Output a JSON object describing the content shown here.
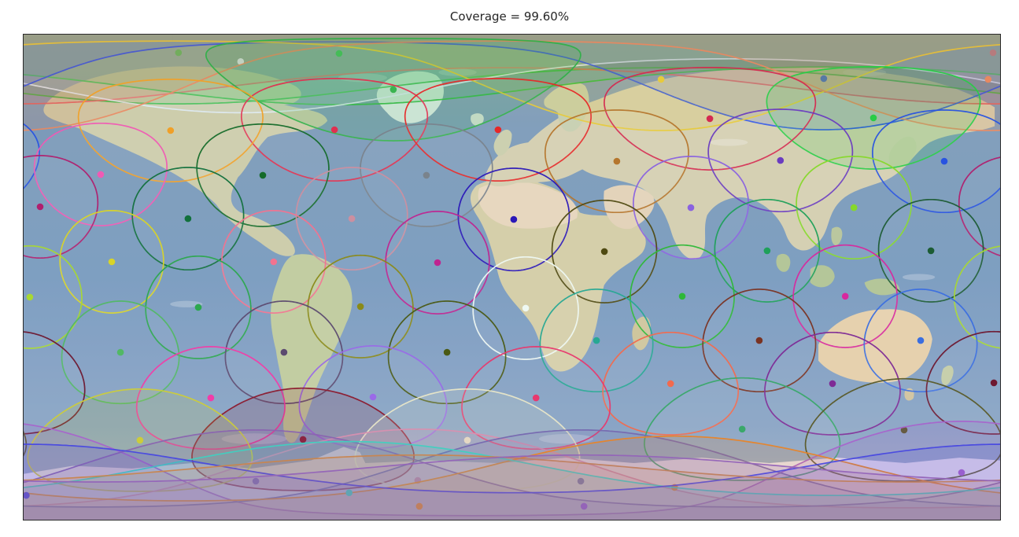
{
  "title": "Coverage = 99.60%",
  "chart_data": {
    "type": "scatter",
    "title": "Coverage = 99.60%",
    "projection": "equirectangular",
    "xlim": [
      -180,
      180
    ],
    "ylim": [
      -90,
      90
    ],
    "grid": false,
    "legend": "none",
    "coverage_radius_deg": 19,
    "coverage_percent": 99.6,
    "satellites": [
      {
        "lon": -122.9,
        "lat": 83.3,
        "color": "#2db83d"
      },
      {
        "lon": -63.7,
        "lat": 83.0,
        "color": "#2db83d"
      },
      {
        "lon": 177.4,
        "lat": 83.3,
        "color": "#e06060"
      },
      {
        "lon": -100.0,
        "lat": 80.0,
        "color": "#dce8f0"
      },
      {
        "lon": 55.0,
        "lat": 73.4,
        "color": "#e6c832"
      },
      {
        "lon": 115.0,
        "lat": 73.7,
        "color": "#2a50e6"
      },
      {
        "lon": 175.6,
        "lat": 73.4,
        "color": "#e88860"
      },
      {
        "lon": -43.7,
        "lat": 69.6,
        "color": "#30b048"
      },
      {
        "lon": 73.0,
        "lat": 58.8,
        "color": "#d42a50"
      },
      {
        "lon": 133.3,
        "lat": 59.1,
        "color": "#28cc46"
      },
      {
        "lon": -125.8,
        "lat": 54.4,
        "color": "#f0a028"
      },
      {
        "lon": -65.4,
        "lat": 54.7,
        "color": "#e03050"
      },
      {
        "lon": -5.1,
        "lat": 54.7,
        "color": "#e62828"
      },
      {
        "lon": 38.7,
        "lat": 43.0,
        "color": "#b5762d"
      },
      {
        "lon": 99.0,
        "lat": 43.3,
        "color": "#6a3cc0"
      },
      {
        "lon": 159.4,
        "lat": 43.0,
        "color": "#2853e0"
      },
      {
        "lon": -151.6,
        "lat": 38.1,
        "color": "#f05ab4"
      },
      {
        "lon": -91.8,
        "lat": 37.8,
        "color": "#156b2a"
      },
      {
        "lon": -31.5,
        "lat": 37.8,
        "color": "#7a838c"
      },
      {
        "lon": -173.9,
        "lat": 26.1,
        "color": "#b01f6e"
      },
      {
        "lon": 66.0,
        "lat": 25.8,
        "color": "#8a62e0"
      },
      {
        "lon": 126.1,
        "lat": 25.8,
        "color": "#86d82a"
      },
      {
        "lon": -119.4,
        "lat": 21.7,
        "color": "#11703c"
      },
      {
        "lon": -59.0,
        "lat": 21.7,
        "color": "#cc8fa0"
      },
      {
        "lon": 0.7,
        "lat": 21.4,
        "color": "#2a17b8"
      },
      {
        "lon": 34.1,
        "lat": 9.5,
        "color": "#4f4a12"
      },
      {
        "lon": 94.1,
        "lat": 9.8,
        "color": "#1fa05a"
      },
      {
        "lon": 154.5,
        "lat": 9.8,
        "color": "#1c5c34"
      },
      {
        "lon": -147.5,
        "lat": 5.7,
        "color": "#d8d428"
      },
      {
        "lon": -87.8,
        "lat": 5.7,
        "color": "#f2738f"
      },
      {
        "lon": -27.4,
        "lat": 5.4,
        "color": "#bf2490"
      },
      {
        "lon": -177.7,
        "lat": -7.4,
        "color": "#a8d832"
      },
      {
        "lon": 62.8,
        "lat": -7.1,
        "color": "#2eb838"
      },
      {
        "lon": 122.9,
        "lat": -7.1,
        "color": "#d8289e"
      },
      {
        "lon": -115.6,
        "lat": -11.2,
        "color": "#2ca84e"
      },
      {
        "lon": -55.8,
        "lat": -10.9,
        "color": "#8a8a18"
      },
      {
        "lon": 5.1,
        "lat": -11.5,
        "color": "#eef8f2"
      },
      {
        "lon": 31.2,
        "lat": -23.5,
        "color": "#27a893"
      },
      {
        "lon": 91.2,
        "lat": -23.5,
        "color": "#7a3322"
      },
      {
        "lon": 150.7,
        "lat": -23.5,
        "color": "#3a6ee0"
      },
      {
        "lon": -144.3,
        "lat": -27.9,
        "color": "#52b865"
      },
      {
        "lon": -84.0,
        "lat": -27.9,
        "color": "#5c4a70"
      },
      {
        "lon": -23.9,
        "lat": -27.9,
        "color": "#4a5a14"
      },
      {
        "lon": 58.5,
        "lat": -39.5,
        "color": "#f26a4e"
      },
      {
        "lon": 118.2,
        "lat": -39.5,
        "color": "#7e2a96"
      },
      {
        "lon": 177.7,
        "lat": -39.2,
        "color": "#6e1830"
      },
      {
        "lon": -111.0,
        "lat": -44.8,
        "color": "#f23ca8"
      },
      {
        "lon": -51.2,
        "lat": -44.5,
        "color": "#9a6ae8"
      },
      {
        "lon": 8.9,
        "lat": -44.8,
        "color": "#e8386e"
      },
      {
        "lon": 84.9,
        "lat": -56.4,
        "color": "#3aa86a"
      },
      {
        "lon": 144.6,
        "lat": -56.7,
        "color": "#5a5a28"
      },
      {
        "lon": -137.1,
        "lat": -60.5,
        "color": "#cccc3a"
      },
      {
        "lon": -77.0,
        "lat": -60.2,
        "color": "#8c1a2e"
      },
      {
        "lon": -16.4,
        "lat": -60.5,
        "color": "#e8e6c8"
      },
      {
        "lon": 165.8,
        "lat": -72.5,
        "color": "#a864cc"
      },
      {
        "lon": -94.4,
        "lat": -75.7,
        "color": "#8a64b0"
      },
      {
        "lon": -34.7,
        "lat": -75.4,
        "color": "#d890b0"
      },
      {
        "lon": 25.4,
        "lat": -75.7,
        "color": "#7668b0"
      },
      {
        "lon": 60.0,
        "lat": -78.0,
        "color": "#e88428"
      },
      {
        "lon": -60.0,
        "lat": -80.0,
        "color": "#40d0c0"
      },
      {
        "lon": -179.0,
        "lat": -81.0,
        "color": "#4848e0"
      },
      {
        "lon": -34.1,
        "lat": -85.0,
        "color": "#c8854e"
      },
      {
        "lon": 26.6,
        "lat": -85.0,
        "color": "#9464b8"
      }
    ]
  }
}
